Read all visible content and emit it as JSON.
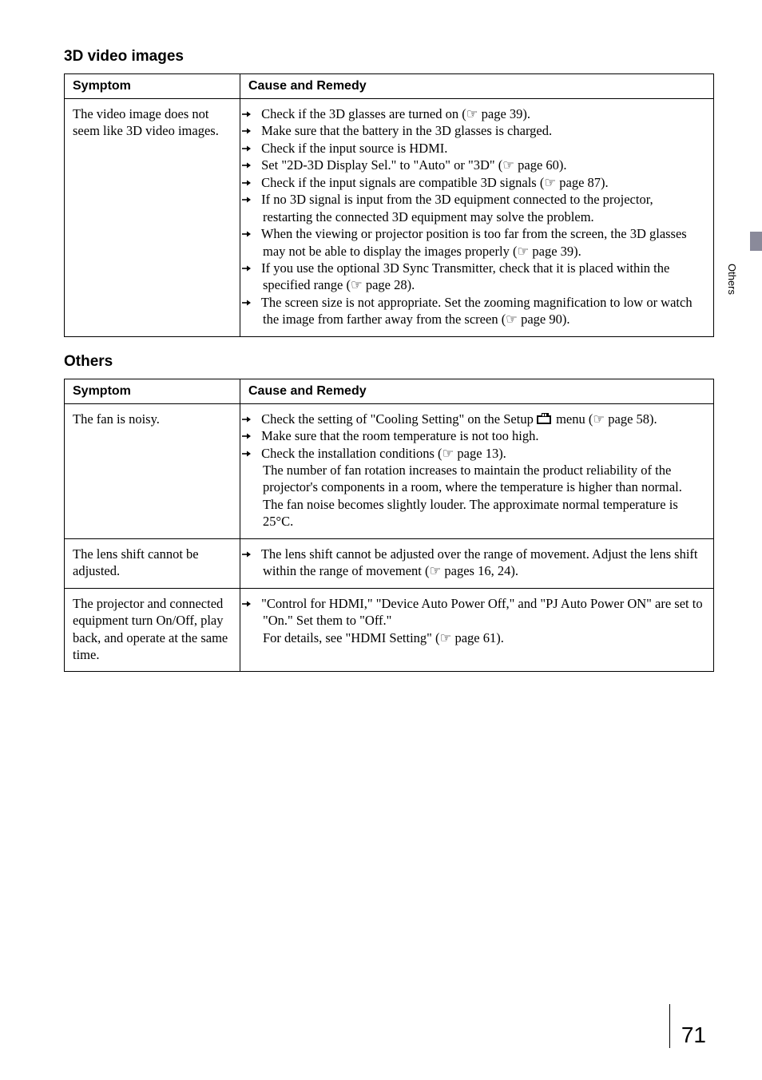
{
  "page_number": "71",
  "side_tab_label": "Others",
  "sections": [
    {
      "title": "3D video images",
      "headers": {
        "symptom": "Symptom",
        "remedy": "Cause and Remedy"
      },
      "rows": [
        {
          "symptom": "The video image does not seem like 3D video images.",
          "remedies": [
            "Check if the 3D glasses are turned on (☞ page 39).",
            "Make sure that the battery in the 3D glasses is charged.",
            "Check if the input source is HDMI.",
            "Set \"2D-3D Display Sel.\" to \"Auto\" or \"3D\" (☞ page 60).",
            "Check if the input signals are compatible 3D signals (☞ page 87).",
            "If no 3D signal is input from the 3D equipment connected to the projector, restarting the connected 3D equipment may solve the problem.",
            "When the viewing or projector position is too far from the screen, the 3D glasses may not be able to display the images properly (☞ page 39).",
            "If you use the optional 3D Sync Transmitter, check that it is placed within the specified range (☞ page 28).",
            "The screen size is not appropriate. Set the zooming magnification to low or watch the image from farther away from the screen (☞ page 90)."
          ]
        }
      ]
    },
    {
      "title": "Others",
      "headers": {
        "symptom": "Symptom",
        "remedy": "Cause and Remedy"
      },
      "rows": [
        {
          "symptom": "The fan is noisy.",
          "remedies": [
            {
              "text_before": "Check the setting of \"Cooling Setting\" on the Setup ",
              "icon": "setup-icon",
              "text_after": " menu (☞ page 58)."
            },
            "Make sure that the room temperature is not too high.",
            {
              "text_before": "Check the installation conditions (☞ page 13).",
              "tail": "The number of fan rotation increases to maintain the product reliability of the projector's components in a room, where the temperature is higher than normal. The fan noise becomes slightly louder. The approximate normal temperature is 25°C."
            }
          ]
        },
        {
          "symptom": "The lens shift cannot be adjusted.",
          "remedies": [
            "The lens shift cannot be adjusted over the range of movement. Adjust the lens shift within the range of movement (☞ pages 16, 24)."
          ]
        },
        {
          "symptom": "The projector and connected equipment turn On/Off, play back, and operate at the same time.",
          "remedies": [
            {
              "text_before": "\"Control for HDMI,\" \"Device Auto Power Off,\" and \"PJ Auto Power ON\" are set to \"On.\" Set them to \"Off.\"",
              "tail": "For details, see \"HDMI Setting\" (☞ page 61)."
            }
          ]
        }
      ]
    }
  ]
}
